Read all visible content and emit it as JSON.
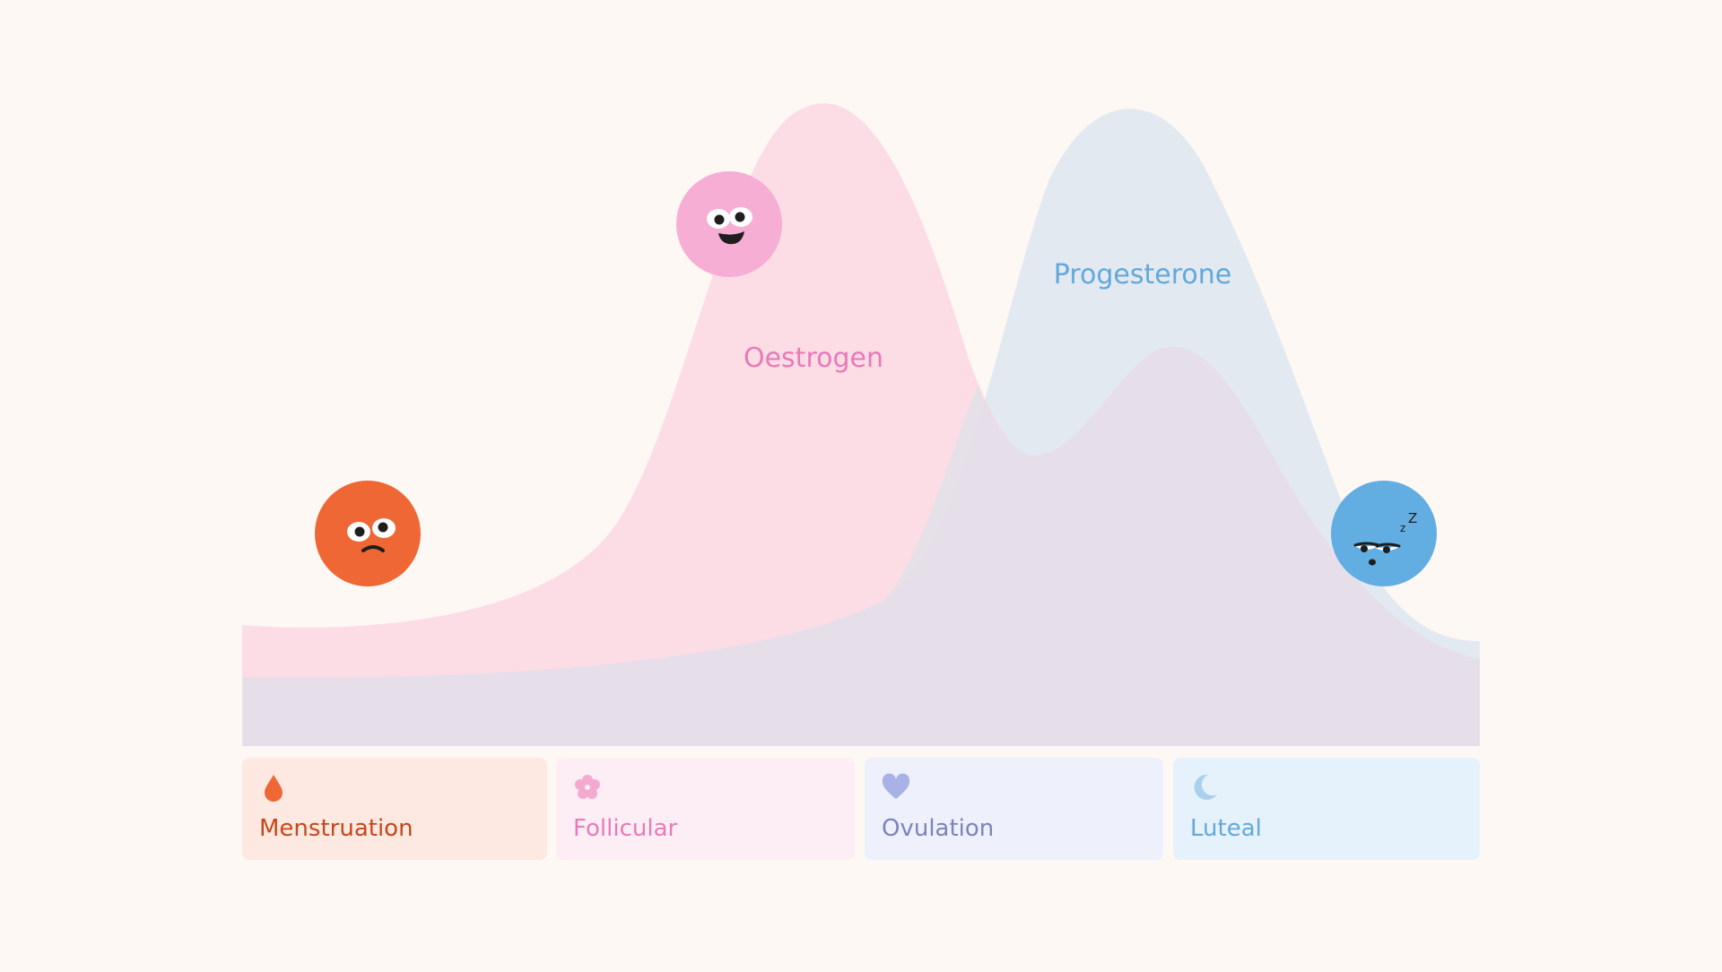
{
  "hormones": [
    {
      "name": "Oestrogen",
      "color": "#e87ab7",
      "fill": "#fbd3e1"
    },
    {
      "name": "Progesterone",
      "color": "#62a9da",
      "fill": "#dce6ee"
    }
  ],
  "phases": [
    {
      "label": "Menstruation",
      "icon": "drop-icon",
      "text_color": "#c7471b",
      "icon_color": "#ef6734",
      "bg": "#fde9e1"
    },
    {
      "label": "Follicular",
      "icon": "flower-icon",
      "text_color": "#e87ab7",
      "icon_color": "#f4a9cf",
      "bg": "#fdeef5"
    },
    {
      "label": "Ovulation",
      "icon": "heart-icon",
      "text_color": "#7c84bc",
      "icon_color": "#a9b2e6",
      "bg": "#eef0fb"
    },
    {
      "label": "Luteal",
      "icon": "moon-icon",
      "text_color": "#62a9da",
      "icon_color": "#a9d1ee",
      "bg": "#e6f2fb"
    }
  ],
  "faces": [
    {
      "mood": "grumpy",
      "icon": "grumpy-face-icon",
      "color": "#ef6734"
    },
    {
      "mood": "happy",
      "icon": "happy-face-icon",
      "color": "#f7aed4"
    },
    {
      "mood": "sleepy",
      "icon": "sleepy-face-icon",
      "color": "#62ade2"
    }
  ],
  "colors": {
    "background": "#fdf8f4",
    "overlap": "#e5dfe9"
  }
}
